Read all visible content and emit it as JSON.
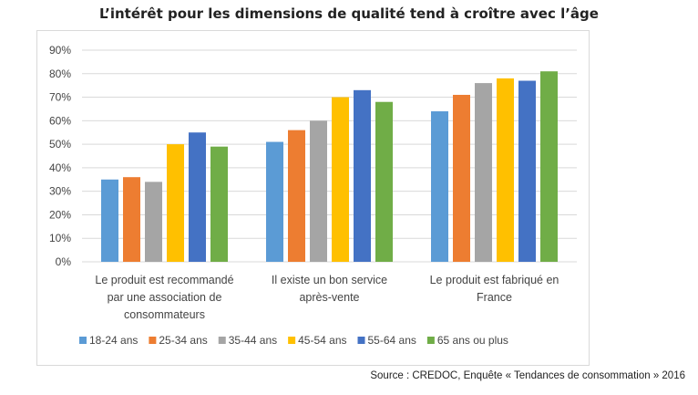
{
  "chart_data": {
    "type": "bar",
    "title": "L’intérêt pour les dimensions de qualité tend à croître avec l’âge",
    "source": "Source : CREDOC, Enquête « Tendances de consommation » 2016",
    "categories": [
      [
        "Le produit est recommandé",
        "par une association de",
        "consommateurs"
      ],
      [
        "Il existe un bon service",
        "après-vente"
      ],
      [
        "Le produit est fabriqué en",
        "France"
      ]
    ],
    "series": [
      {
        "name": "18-24 ans",
        "color": "#5b9bd5",
        "values": [
          35,
          51,
          64
        ]
      },
      {
        "name": "25-34 ans",
        "color": "#ed7d31",
        "values": [
          36,
          56,
          71
        ]
      },
      {
        "name": "35-44 ans",
        "color": "#a5a5a5",
        "values": [
          34,
          60,
          76
        ]
      },
      {
        "name": "45-54 ans",
        "color": "#ffc000",
        "values": [
          50,
          70,
          78
        ]
      },
      {
        "name": "55-64 ans",
        "color": "#4472c4",
        "values": [
          55,
          73,
          77
        ]
      },
      {
        "name": "65 ans ou plus",
        "color": "#70ad47",
        "values": [
          49,
          68,
          81
        ]
      }
    ],
    "ylim": [
      0,
      90
    ],
    "yticks": [
      "0%",
      "10%",
      "20%",
      "30%",
      "40%",
      "50%",
      "60%",
      "70%",
      "80%",
      "90%"
    ],
    "grid": true,
    "legend_position": "bottom"
  }
}
